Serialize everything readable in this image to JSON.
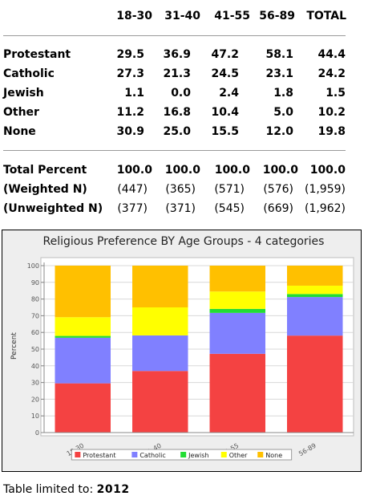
{
  "table": {
    "columns": [
      "18-30",
      "31-40",
      "41-55",
      "56-89",
      "TOTAL"
    ],
    "rows": [
      {
        "label": "Protestant",
        "values": [
          "29.5",
          "36.9",
          "47.2",
          "58.1",
          "44.4"
        ]
      },
      {
        "label": "Catholic",
        "values": [
          "27.3",
          "21.3",
          "24.5",
          "23.1",
          "24.2"
        ]
      },
      {
        "label": "Jewish",
        "values": [
          "1.1",
          "0.0",
          "2.4",
          "1.8",
          "1.5"
        ]
      },
      {
        "label": "Other",
        "values": [
          "11.2",
          "16.8",
          "10.4",
          "5.0",
          "10.2"
        ]
      },
      {
        "label": "None",
        "values": [
          "30.9",
          "25.0",
          "15.5",
          "12.0",
          "19.8"
        ]
      }
    ],
    "summary": [
      {
        "label": "Total Percent",
        "values": [
          "100.0",
          "100.0",
          "100.0",
          "100.0",
          "100.0"
        ]
      },
      {
        "label": "(Weighted N)",
        "values": [
          "(447)",
          "(365)",
          "(571)",
          "(576)",
          "(1,959)"
        ]
      },
      {
        "label": "(Unweighted N)",
        "values": [
          "(377)",
          "(371)",
          "(545)",
          "(669)",
          "(1,962)"
        ]
      }
    ]
  },
  "chart_data": {
    "type": "bar",
    "stacked": true,
    "title": "Religious Preference BY Age Groups - 4 categories",
    "xlabel": "",
    "ylabel": "Percent",
    "ylim": [
      0,
      100
    ],
    "yticks": [
      "0",
      "10",
      "20",
      "30",
      "40",
      "50",
      "60",
      "70",
      "80",
      "90",
      "100"
    ],
    "categories": [
      "18-30",
      "31-40",
      "41-55",
      "56-89"
    ],
    "series": [
      {
        "name": "Protestant",
        "color": "#f44242",
        "values": [
          29.5,
          36.9,
          47.2,
          58.1
        ]
      },
      {
        "name": "Catholic",
        "color": "#8080ff",
        "values": [
          27.3,
          21.3,
          24.5,
          23.1
        ]
      },
      {
        "name": "Jewish",
        "color": "#22dd33",
        "values": [
          1.1,
          0.0,
          2.4,
          1.8
        ]
      },
      {
        "name": "Other",
        "color": "#ffff00",
        "values": [
          11.2,
          16.8,
          10.4,
          5.0
        ]
      },
      {
        "name": "None",
        "color": "#ffc000",
        "values": [
          30.9,
          25.0,
          15.5,
          12.0
        ]
      }
    ],
    "legend": "bottom",
    "grid": true
  },
  "footer": {
    "label": "Table limited to:",
    "value": "2012"
  }
}
